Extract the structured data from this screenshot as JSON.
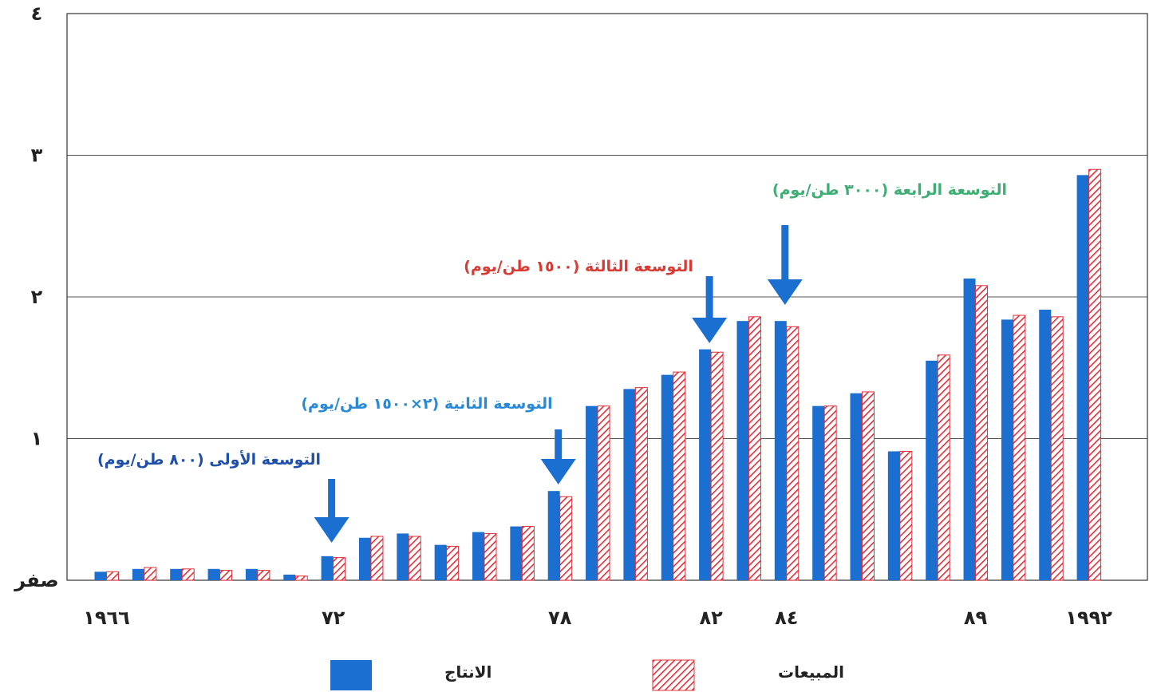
{
  "chart_data": {
    "type": "bar",
    "title": "",
    "xlabel": "",
    "ylabel": "",
    "ylim": [
      0,
      4
    ],
    "grid": true,
    "legend_position": "bottom",
    "y_tick_labels": [
      "صفر",
      "١",
      "٢",
      "٣",
      "٤"
    ],
    "x_tick_labels": [
      {
        "label": "١٩٦٦",
        "year": 1966
      },
      {
        "label": "٧٢",
        "year": 1972
      },
      {
        "label": "٧٨",
        "year": 1978
      },
      {
        "label": "٨٢",
        "year": 1982
      },
      {
        "label": "٨٤",
        "year": 1984
      },
      {
        "label": "٨٩",
        "year": 1989
      },
      {
        "label": "١٩٩٢",
        "year": 1992
      }
    ],
    "categories": [
      1966,
      1967,
      1968,
      1969,
      1970,
      1971,
      1972,
      1973,
      1974,
      1975,
      1976,
      1977,
      1978,
      1979,
      1980,
      1981,
      1982,
      1983,
      1984,
      1985,
      1986,
      1987,
      1988,
      1989,
      1990,
      1991,
      1992
    ],
    "series": [
      {
        "name": "الانتاج",
        "color": "#1a6fd0",
        "pattern": "solid",
        "values": [
          0.06,
          0.08,
          0.08,
          0.08,
          0.08,
          0.04,
          0.17,
          0.3,
          0.33,
          0.25,
          0.34,
          0.38,
          0.63,
          1.23,
          1.35,
          1.45,
          1.63,
          1.83,
          1.83,
          1.23,
          1.32,
          0.91,
          1.55,
          2.13,
          1.84,
          1.91,
          2.86
        ]
      },
      {
        "name": "المبيعات",
        "color": "#e0303a",
        "pattern": "hatched",
        "values": [
          0.06,
          0.09,
          0.08,
          0.07,
          0.07,
          0.03,
          0.16,
          0.31,
          0.31,
          0.24,
          0.33,
          0.38,
          0.59,
          1.23,
          1.36,
          1.47,
          1.61,
          1.86,
          1.79,
          1.23,
          1.33,
          0.91,
          1.59,
          2.08,
          1.87,
          1.86,
          2.9
        ]
      }
    ],
    "annotations": [
      {
        "text": "التوسعة الأولى (٨٠٠ طن/يوم)",
        "color": "#1f4fa8",
        "year": 1972
      },
      {
        "text": "التوسعة الثانية (٢×١٥٠٠ طن/يوم)",
        "color": "#2a8ad6",
        "year": 1978
      },
      {
        "text": "التوسعة الثالثة (١٥٠٠ طن/يوم)",
        "color": "#d83a34",
        "year": 1982
      },
      {
        "text": "التوسعة الرابعة (٣٠٠٠ طن/يوم)",
        "color": "#3fae74",
        "year": 1984
      }
    ],
    "arrow_color": "#1a6fd0"
  }
}
